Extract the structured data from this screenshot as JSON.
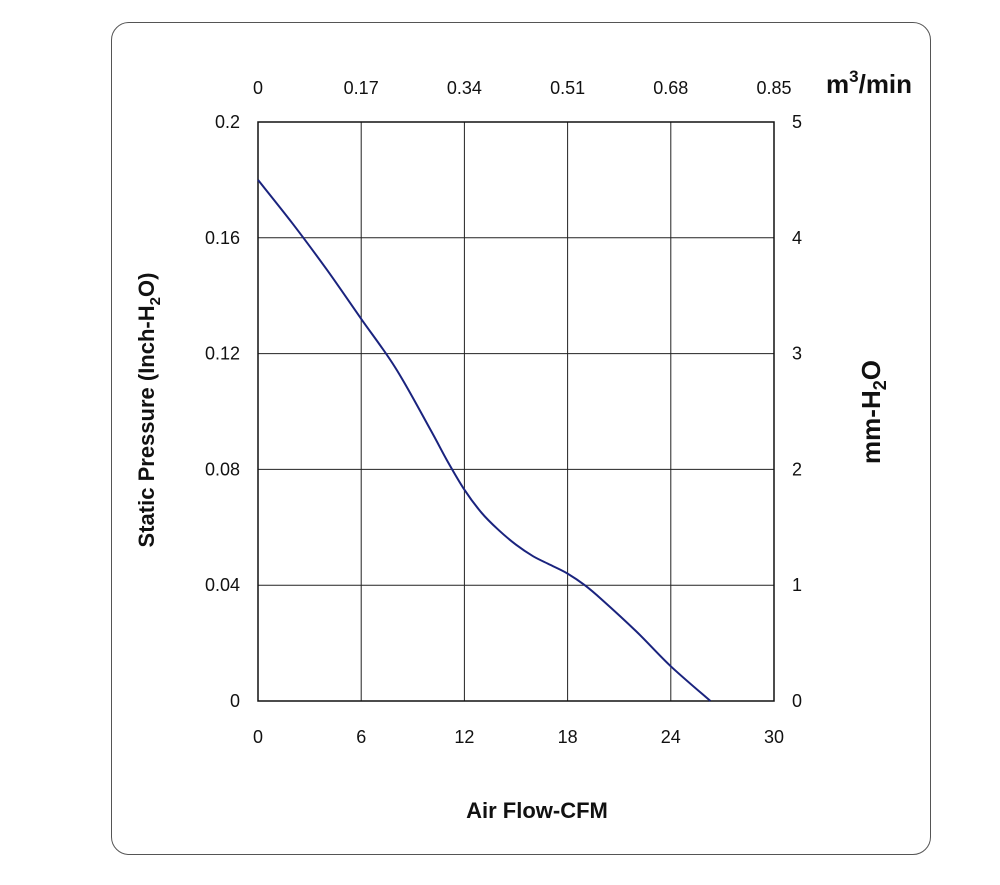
{
  "chart_data": {
    "type": "line",
    "xlabel": "Air Flow-CFM",
    "ylabel": {
      "main": "Static Pressure (Inch-H",
      "sub": "2",
      "end": "O)"
    },
    "y2label": {
      "main": "mm-H",
      "sub": "2",
      "end": "O"
    },
    "x2label": {
      "main": "m",
      "sup": "3",
      "end": "/min"
    },
    "xlim": [
      0,
      30
    ],
    "ylim": [
      0,
      0.2
    ],
    "y2lim": [
      0,
      5
    ],
    "x_ticks": [
      "0",
      "6",
      "12",
      "18",
      "24",
      "30"
    ],
    "y_ticks": [
      "0",
      "0.04",
      "0.08",
      "0.12",
      "0.16",
      "0.2"
    ],
    "x2_ticks": [
      "0",
      "0.17",
      "0.34",
      "0.51",
      "0.68",
      "0.85"
    ],
    "y2_ticks": [
      "0",
      "1",
      "2",
      "3",
      "4",
      "5"
    ],
    "grid": true,
    "series": [
      {
        "color": "#1a237e",
        "points": [
          [
            0,
            0.18
          ],
          [
            2,
            0.165
          ],
          [
            4,
            0.149
          ],
          [
            6,
            0.132
          ],
          [
            8,
            0.115
          ],
          [
            10,
            0.094
          ],
          [
            11,
            0.083
          ],
          [
            12,
            0.073
          ],
          [
            13,
            0.065
          ],
          [
            14,
            0.059
          ],
          [
            15,
            0.054
          ],
          [
            16,
            0.05
          ],
          [
            17,
            0.047
          ],
          [
            18,
            0.044
          ],
          [
            19,
            0.04
          ],
          [
            20,
            0.035
          ],
          [
            22,
            0.024
          ],
          [
            24,
            0.012
          ],
          [
            26.3,
            0.0
          ]
        ]
      }
    ]
  }
}
